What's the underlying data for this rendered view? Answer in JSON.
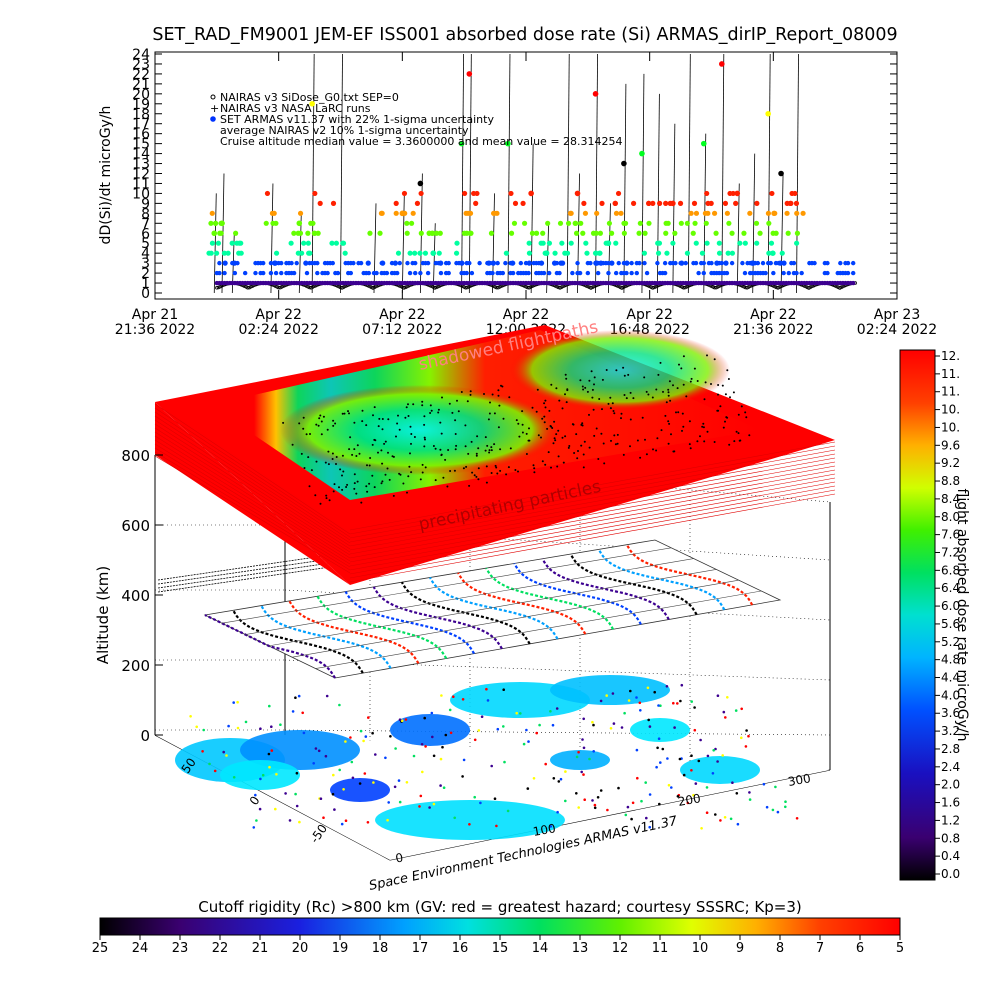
{
  "title": "SET_RAD_FM9001  JEM-EF ISS001 absorbed dose rate (Si) ARMAS_dirIP_Report_08009",
  "chart_data": [
    {
      "type": "scatter",
      "ylabel": "dD(Si)/dt microGy/h",
      "ylim": [
        0,
        24
      ],
      "yticks": [
        "0",
        "1",
        "2",
        "3",
        "4",
        "5",
        "6",
        "7",
        "8",
        "9",
        "10",
        "11",
        "12",
        "13",
        "14",
        "15",
        "16",
        "17",
        "18",
        "19",
        "20",
        "21",
        "22",
        "23",
        "24"
      ],
      "xticks": [
        {
          "line1": "Apr 21",
          "line2": "21:36 2022"
        },
        {
          "line1": "Apr 22",
          "line2": "02:24 2022"
        },
        {
          "line1": "Apr 22",
          "line2": "07:12 2022"
        },
        {
          "line1": "Apr 22",
          "line2": "12:00 2022"
        },
        {
          "line1": "Apr 22",
          "line2": "16:48 2022"
        },
        {
          "line1": "Apr 22",
          "line2": "21:36 2022"
        },
        {
          "line1": "Apr 23",
          "line2": "02:24 2022"
        }
      ],
      "legend_position": "top-left",
      "legend": [
        "NAIRAS v3 SiDose_G0.txt SEP=0",
        "NAIRAS v3 NASA LaRC runs",
        "SET ARMAS v11.37 with 22% 1-sigma uncertainty",
        "average NAIRAS v2 10% 1-sigma uncertainty",
        "Cruise altitude median value = 3.3600000 and mean value = 28.314254"
      ],
      "spike_times_h": [
        2.3,
        2.6,
        3.0,
        4.5,
        5.6,
        6.1,
        7.2,
        8.5,
        9.6,
        10.3,
        10.8,
        11.9,
        12.2,
        13.1,
        13.7,
        14.6,
        15.2,
        16.0,
        16.4,
        17.1,
        17.6,
        18.2,
        18.9,
        19.5,
        20.1,
        20.7,
        21.3,
        22.0,
        22.6,
        23.2,
        23.8,
        24.3,
        24.9
      ],
      "spike_peaks": [
        10,
        12,
        6,
        11,
        8,
        24,
        24,
        9,
        10,
        12,
        7,
        24,
        24,
        10,
        24,
        15,
        7,
        24,
        12,
        24,
        9,
        21,
        22,
        20,
        17,
        24,
        16,
        24,
        11,
        14,
        24,
        12,
        24
      ]
    },
    {
      "type": "heatmap",
      "ylabel": "Altitude (km)",
      "zticks": [
        "0",
        "200",
        "400",
        "600",
        "800"
      ],
      "lat_ticks": [
        "50",
        "0",
        "-50"
      ],
      "lon_ticks": [
        "0",
        "100",
        "200",
        "300"
      ],
      "annotations": [
        "shadowed flightpaths",
        "precipitating particles"
      ],
      "credit": "Space Environment Technologies ARMAS v11.37"
    }
  ],
  "dose_colorbar": {
    "label": "flight absorbed dose rate microGy/h",
    "ticks": [
      "12.",
      "11.",
      "11.",
      "10.",
      "10.",
      "9.6",
      "9.2",
      "8.8",
      "8.4",
      "8.0",
      "7.6",
      "7.2",
      "6.8",
      "6.4",
      "6.0",
      "5.6",
      "5.2",
      "4.8",
      "4.4",
      "4.0",
      "3.6",
      "3.2",
      "2.8",
      "2.4",
      "2.0",
      "1.6",
      "1.2",
      "0.8",
      "0.4",
      "0.0"
    ]
  },
  "rigidity_colorbar": {
    "label": "Cutoff rigidity (Rc) >800 km (GV: red = greatest hazard; courtesy SSSRC; Kp=3)",
    "ticks": [
      "25",
      "24",
      "23",
      "22",
      "21",
      "20",
      "19",
      "18",
      "17",
      "16",
      "15",
      "14",
      "13",
      "12",
      "11",
      "10",
      "9",
      "8",
      "7",
      "6",
      "5"
    ]
  },
  "colors": {
    "red": "#ff0000",
    "orange": "#ff8800",
    "yellow": "#ffff00",
    "green": "#00cc00",
    "cyan": "#00e0ff",
    "blue": "#0033ff",
    "purple": "#440088",
    "black": "#000000"
  }
}
